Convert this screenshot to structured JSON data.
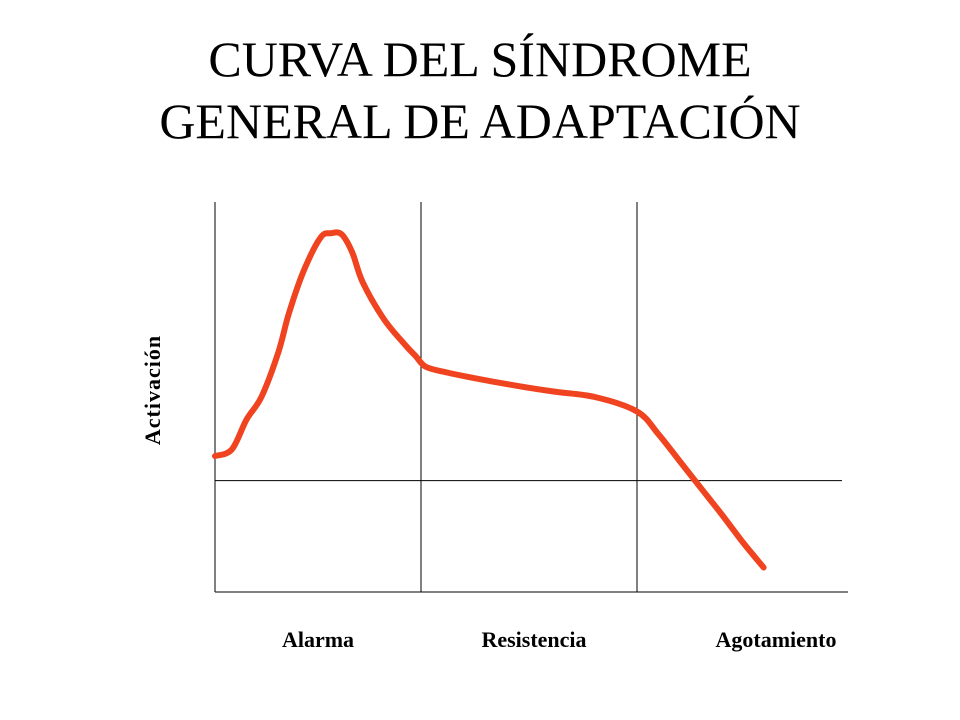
{
  "title_lines": [
    "CURVA DEL SÍNDROME",
    "GENERAL DE ADAPTACIÓN"
  ],
  "chart_data": {
    "type": "line",
    "title": "CURVA DEL SÍNDROME GENERAL DE ADAPTACIÓN",
    "xlabel": "",
    "ylabel": "Activación",
    "phases": [
      "Alarma",
      "Resistencia",
      "Agotamiento"
    ],
    "grid": false,
    "xlim": [
      0,
      3
    ],
    "ylim": [
      -1,
      2.5
    ],
    "baseline": 0,
    "series": [
      {
        "color": "#f0431f",
        "x": [
          0.0,
          0.08,
          0.15,
          0.22,
          0.3,
          0.35,
          0.42,
          0.5,
          0.55,
          0.6,
          0.65,
          0.7,
          0.8,
          0.9,
          0.95,
          1.0,
          1.1,
          1.2,
          1.4,
          1.6,
          1.8,
          2.0,
          2.1,
          2.2,
          2.3,
          2.4,
          2.5,
          2.6
        ],
        "y": [
          0.22,
          0.28,
          0.55,
          0.75,
          1.15,
          1.5,
          1.88,
          2.18,
          2.22,
          2.21,
          2.05,
          1.78,
          1.45,
          1.22,
          1.12,
          1.02,
          0.97,
          0.93,
          0.86,
          0.8,
          0.75,
          0.62,
          0.42,
          0.18,
          -0.06,
          -0.3,
          -0.55,
          -0.78
        ]
      }
    ]
  }
}
